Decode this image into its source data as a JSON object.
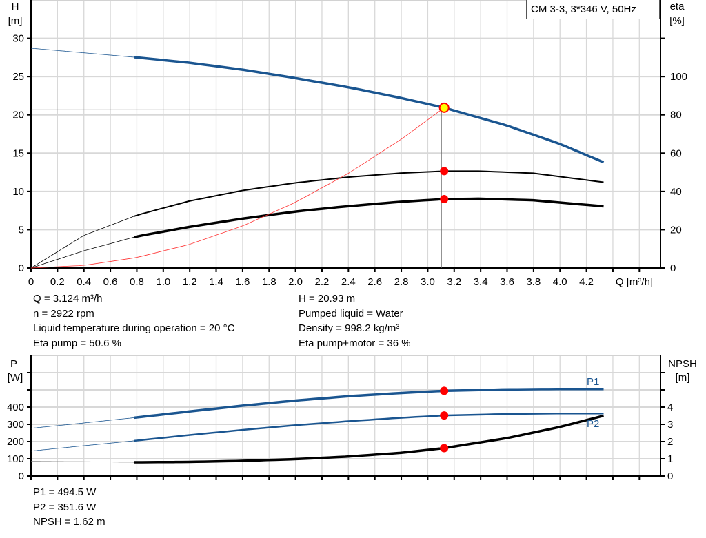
{
  "legend_title": "CM 3-3, 3*346 V, 50Hz",
  "colors": {
    "head": "#1a5590",
    "eta": "#000000",
    "system": "#ff3333",
    "marker": "#ff0000",
    "op_marker": "#ffff00",
    "grid": "#d8d8d8"
  },
  "chart_data": [
    {
      "type": "line",
      "xlabel": "Q [m³/h]",
      "ylabel": "H\n[m]",
      "y2label": "eta\n[%]",
      "ylabel_parts": [
        "H",
        "[m]"
      ],
      "y2label_parts": [
        "eta",
        "[%]"
      ],
      "xlim": [
        0,
        4.76
      ],
      "ylim": [
        0,
        35
      ],
      "y2lim": [
        0,
        140
      ],
      "grid": true,
      "x_ticks": [
        "0",
        "0.2",
        "0.4",
        "0.6",
        "0.8",
        "1.0",
        "1.2",
        "1.4",
        "1.6",
        "1.8",
        "2.0",
        "2.2",
        "2.4",
        "2.6",
        "2.8",
        "3.0",
        "3.2",
        "3.4",
        "3.6",
        "3.8",
        "4.0",
        "4.2"
      ],
      "y_ticks": [
        "0",
        "5",
        "10",
        "15",
        "20",
        "25",
        "30"
      ],
      "y2_ticks": [
        "0",
        "20",
        "40",
        "60",
        "80",
        "100"
      ],
      "series": [
        {
          "key": "H",
          "axis": "left",
          "x": [
            0,
            0.4,
            0.8,
            1.2,
            1.6,
            2.0,
            2.4,
            2.8,
            3.124,
            3.6,
            4.0,
            4.33
          ],
          "y": [
            28.7,
            28.1,
            27.5,
            26.8,
            25.9,
            24.8,
            23.6,
            22.2,
            20.93,
            18.6,
            16.2,
            13.8
          ]
        },
        {
          "key": "eta_pump",
          "axis": "right",
          "x": [
            0,
            0.4,
            0.8,
            1.2,
            1.6,
            2.0,
            2.4,
            2.8,
            3.124,
            3.4,
            3.8,
            4.33
          ],
          "y": [
            0,
            17,
            27.6,
            35,
            40.5,
            44.5,
            47.5,
            49.6,
            50.6,
            50.6,
            49.5,
            44.8
          ]
        },
        {
          "key": "eta_total",
          "axis": "right",
          "x": [
            0,
            0.4,
            0.8,
            1.2,
            1.6,
            2.0,
            2.4,
            2.8,
            3.124,
            3.4,
            3.8,
            4.33
          ],
          "y": [
            0,
            9,
            16.5,
            21.5,
            25.8,
            29.5,
            32.3,
            34.6,
            36,
            36.2,
            35.4,
            32.2
          ]
        },
        {
          "key": "system",
          "axis": "left",
          "x": [
            0,
            0.4,
            0.8,
            1.2,
            1.6,
            2.0,
            2.4,
            2.8,
            3.124
          ],
          "y": [
            0,
            0.34,
            1.37,
            3.09,
            5.49,
            8.58,
            12.36,
            16.82,
            20.93
          ]
        }
      ],
      "operating_point": {
        "Q": 3.124,
        "H": 20.93,
        "eta_pump": 50.6,
        "eta_total": 36
      }
    },
    {
      "type": "line",
      "ylabel_parts": [
        "P",
        "[W]"
      ],
      "y2label_parts": [
        "NPSH",
        "[m]"
      ],
      "xlim": [
        0,
        4.76
      ],
      "ylim": [
        0,
        700
      ],
      "y2lim": [
        0,
        7
      ],
      "grid": true,
      "y_ticks": [
        "0",
        "100",
        "200",
        "300",
        "400"
      ],
      "y2_ticks": [
        "0",
        "1",
        "2",
        "3",
        "4"
      ],
      "series": [
        {
          "key": "P1",
          "name": "P1",
          "axis": "left",
          "x": [
            0,
            0.4,
            0.8,
            1.2,
            1.6,
            2.0,
            2.4,
            2.8,
            3.124,
            3.6,
            4.0,
            4.33
          ],
          "y": [
            277,
            308,
            340,
            375,
            408,
            438,
            463,
            482,
            494.5,
            503,
            505,
            505
          ]
        },
        {
          "key": "P2",
          "name": "P2",
          "axis": "left",
          "x": [
            0,
            0.4,
            0.8,
            1.2,
            1.6,
            2.0,
            2.4,
            2.8,
            3.124,
            3.6,
            4.0,
            4.33
          ],
          "y": [
            145,
            176,
            206,
            238,
            268,
            295,
            318,
            338,
            351.6,
            360,
            363,
            363
          ]
        },
        {
          "key": "NPSH",
          "axis": "right",
          "x": [
            0,
            0.4,
            0.8,
            1.2,
            1.6,
            2.0,
            2.4,
            2.8,
            3.124,
            3.6,
            4.0,
            4.33
          ],
          "y": [
            0.85,
            0.83,
            0.8,
            0.82,
            0.88,
            0.98,
            1.13,
            1.35,
            1.62,
            2.2,
            2.85,
            3.5
          ]
        }
      ],
      "operating_point": {
        "Q": 3.124,
        "P1": 494.5,
        "P2": 351.6,
        "NPSH": 1.62
      }
    }
  ],
  "info_top_left": [
    "Q = 3.124 m³/h",
    "n = 2922 rpm",
    "Liquid temperature during operation = 20 °C",
    "Eta pump = 50.6 %"
  ],
  "info_top_right": [
    "H = 20.93 m",
    "Pumped liquid = Water",
    "Density = 998.2 kg/m³",
    "Eta pump+motor = 36 %"
  ],
  "info_bottom": [
    "P1 = 494.5 W",
    "P2 = 351.6 W",
    "NPSH = 1.62 m"
  ]
}
